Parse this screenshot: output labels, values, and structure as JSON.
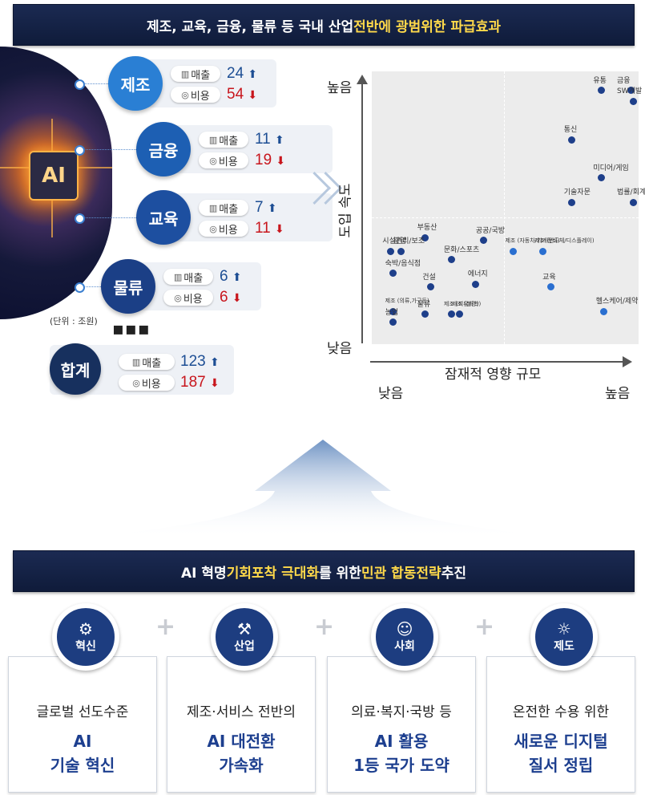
{
  "top_banner": {
    "part1": "제조, 교육, 금융, 물류 등 국내 산업 ",
    "highlight": "전반에 광범위한 파급효과"
  },
  "hero": {
    "chip": "AI"
  },
  "sectors": [
    {
      "name": "제조",
      "sales": "24",
      "cost": "54",
      "color": "#2a7fd4"
    },
    {
      "name": "금융",
      "sales": "11",
      "cost": "19",
      "color": "#1d5fb3"
    },
    {
      "name": "교육",
      "sales": "7",
      "cost": "11",
      "color": "#1d4fa0"
    },
    {
      "name": "물류",
      "sales": "6",
      "cost": "6",
      "color": "#1b3f86"
    }
  ],
  "labels": {
    "sales": "매출",
    "cost": "비용",
    "unit": "(단위 : 조원)",
    "dots": "▪▪▪"
  },
  "total": {
    "name": "합계",
    "sales": "123",
    "cost": "187",
    "color": "#17305e"
  },
  "icons": {
    "sales": "chart-icon",
    "cost": "coin-icon",
    "up": "arrow-up-icon",
    "down": "arrow-down-icon"
  },
  "chart_data": {
    "type": "scatter",
    "ylabel": "도입 속도",
    "xlabel": "잠재적 영향 규모",
    "y_high": "높음",
    "y_low": "낮음",
    "x_low": "낮음",
    "x_high": "높음",
    "points": [
      {
        "label": "유통",
        "x": 0.86,
        "y": 0.93
      },
      {
        "label": "금융",
        "x": 0.97,
        "y": 0.93
      },
      {
        "label": "SW개발",
        "x": 0.98,
        "y": 0.89
      },
      {
        "label": "통신",
        "x": 0.75,
        "y": 0.75
      },
      {
        "label": "미디어/게임",
        "x": 0.86,
        "y": 0.61
      },
      {
        "label": "기술자문",
        "x": 0.75,
        "y": 0.52
      },
      {
        "label": "법률/회계/경영자문",
        "x": 0.98,
        "y": 0.52
      },
      {
        "label": "부동산",
        "x": 0.2,
        "y": 0.39
      },
      {
        "label": "공공/국방",
        "x": 0.42,
        "y": 0.38
      },
      {
        "label": "시설관리/보조",
        "x": 0.07,
        "y": 0.34
      },
      {
        "label": "광업",
        "x": 0.11,
        "y": 0.34
      },
      {
        "label": "제조 (자동차/기계장비)",
        "x": 0.53,
        "y": 0.34
      },
      {
        "label": "제조 (반도체/디스플레이)",
        "x": 0.64,
        "y": 0.34
      },
      {
        "label": "문화/스포츠",
        "x": 0.3,
        "y": 0.31
      },
      {
        "label": "숙박/음식점",
        "x": 0.08,
        "y": 0.26
      },
      {
        "label": "건설",
        "x": 0.22,
        "y": 0.21
      },
      {
        "label": "교육",
        "x": 0.67,
        "y": 0.21
      },
      {
        "label": "에너지",
        "x": 0.39,
        "y": 0.22
      },
      {
        "label": "제조 (의류,가구등)",
        "x": 0.08,
        "y": 0.12
      },
      {
        "label": "헬스케어/제약",
        "x": 0.87,
        "y": 0.12
      },
      {
        "label": "농업",
        "x": 0.08,
        "y": 0.08
      },
      {
        "label": "물류",
        "x": 0.2,
        "y": 0.11
      },
      {
        "label": "제조 (석유화학)",
        "x": 0.3,
        "y": 0.11
      },
      {
        "label": "제조 (철강)",
        "x": 0.33,
        "y": 0.11
      }
    ]
  },
  "bottom_banner": {
    "p1": "AI 혁명 ",
    "h1": "기회포착 극대화",
    "p2": "를 위한 ",
    "h2": "민관 합동전략",
    "p3": " 추진"
  },
  "pillars": [
    {
      "name": "혁신",
      "sub": "글로벌 선도수준",
      "t1": "AI",
      "t2": "기술 혁신",
      "icon": "innovation-icon",
      "glyph": "⚙"
    },
    {
      "name": "산업",
      "sub": "제조·서비스 전반의",
      "t1": "AI 대전환",
      "t2": "가속화",
      "icon": "industry-icon",
      "glyph": "⚒"
    },
    {
      "name": "사회",
      "sub": "의료·복지·국방 등",
      "t1": "AI 활용",
      "t2": "1등 국가 도약",
      "icon": "society-icon",
      "glyph": "☺"
    },
    {
      "name": "제도",
      "sub": "온전한 수용 위한",
      "t1": "새로운 디지털",
      "t2": "질서 정립",
      "icon": "institution-icon",
      "glyph": "☼"
    }
  ],
  "plus": "+"
}
